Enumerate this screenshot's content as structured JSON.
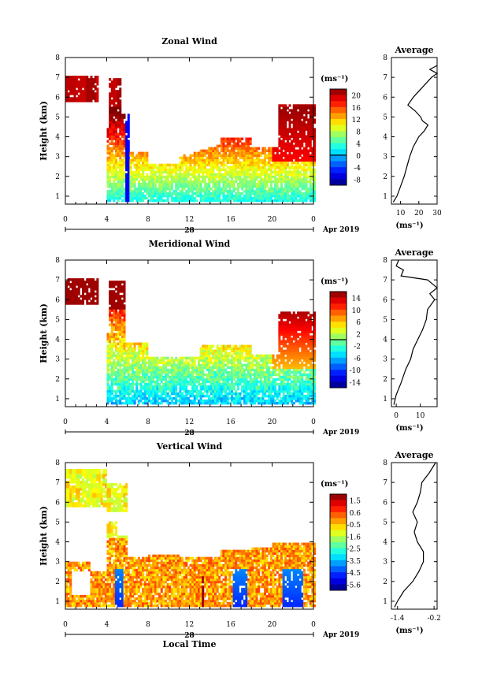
{
  "chart_data": [
    {
      "type": "heatmap",
      "title": "Zonal Wind",
      "ylabel": "Height (km)",
      "xlabel": "",
      "x_ticks": [
        "0",
        "4",
        "8",
        "12",
        "16",
        "20",
        "0"
      ],
      "y_ticks": [
        "1",
        "2",
        "3",
        "4",
        "5",
        "6",
        "7",
        "8"
      ],
      "date_label": "28",
      "month_label": "Apr 2019",
      "xlim": [
        0,
        24
      ],
      "ylim": [
        0.6,
        8.0
      ],
      "colorbar": {
        "unit": "(ms⁻¹)",
        "ticks": [
          "20",
          "16",
          "12",
          "8",
          "4",
          "0",
          "-4",
          "-8"
        ],
        "range": [
          -10,
          22
        ],
        "zero_line": 0
      },
      "average_profile": {
        "title": "Average",
        "xlabel": "(ms⁻¹)",
        "x_ticks": [
          "10",
          "20",
          "30"
        ],
        "xlim": [
          5,
          30
        ],
        "height": [
          0.7,
          1.0,
          1.5,
          2.0,
          2.5,
          3.0,
          3.5,
          4.0,
          4.3,
          4.6,
          4.8,
          5.0,
          5.3,
          5.6,
          6.0,
          6.5,
          7.0,
          7.2,
          7.4,
          7.6
        ],
        "value": [
          6,
          8,
          10,
          12,
          13.5,
          15,
          17,
          20,
          23,
          25,
          22,
          21,
          18,
          14,
          17,
          22,
          27,
          30,
          26,
          30
        ]
      }
    },
    {
      "type": "heatmap",
      "title": "Meridional Wind",
      "ylabel": "Height (km)",
      "xlabel": "",
      "x_ticks": [
        "0",
        "4",
        "8",
        "12",
        "16",
        "20",
        "0"
      ],
      "y_ticks": [
        "1",
        "2",
        "3",
        "4",
        "5",
        "6",
        "7",
        "8"
      ],
      "date_label": "28",
      "month_label": "Apr 2019",
      "xlim": [
        0,
        24
      ],
      "ylim": [
        0.6,
        8.0
      ],
      "colorbar": {
        "unit": "(ms⁻¹)",
        "ticks": [
          "14",
          "10",
          "6",
          "2",
          "-2",
          "-6",
          "-10",
          "-14"
        ],
        "range": [
          -16,
          16
        ],
        "zero_line": 0
      },
      "average_profile": {
        "title": "Average",
        "xlabel": "(ms⁻¹)",
        "x_ticks": [
          "0",
          "10"
        ],
        "xlim": [
          -2,
          17
        ],
        "height": [
          0.7,
          1.2,
          1.8,
          2.5,
          3.0,
          3.5,
          4.0,
          4.5,
          5.0,
          5.5,
          6.0,
          6.3,
          6.6,
          7.0,
          7.2,
          7.5,
          7.7,
          8.0
        ],
        "value": [
          -1,
          0,
          2,
          4,
          6,
          7,
          9,
          11,
          12.5,
          13,
          16,
          14,
          17,
          13,
          2,
          3,
          0,
          1
        ]
      }
    },
    {
      "type": "heatmap",
      "title": "Vertical Wind",
      "ylabel": "Height (km)",
      "xlabel": "Local Time",
      "x_ticks": [
        "0",
        "4",
        "8",
        "12",
        "16",
        "20",
        "0"
      ],
      "y_ticks": [
        "1",
        "2",
        "3",
        "4",
        "5",
        "6",
        "7",
        "8"
      ],
      "date_label": "28",
      "month_label": "Apr 2019",
      "xlim": [
        0,
        24
      ],
      "ylim": [
        0.6,
        8.0
      ],
      "colorbar": {
        "unit": "(ms⁻¹)",
        "ticks": [
          "1.5",
          "0.6",
          "-0.5",
          "-1.6",
          "-2.5",
          "-3.5",
          "-4.5",
          "-5.6"
        ],
        "range": [
          -6.0,
          2.0
        ]
      },
      "average_profile": {
        "title": "Average",
        "xlabel": "(ms⁻¹)",
        "x_ticks": [
          "-1.4",
          "-0.2"
        ],
        "xlim": [
          -1.6,
          -0.1
        ],
        "height": [
          0.7,
          1.0,
          1.5,
          2.0,
          2.5,
          3.0,
          3.5,
          4.0,
          4.5,
          5.0,
          5.5,
          6.0,
          6.5,
          7.0,
          7.5,
          8.0
        ],
        "value": [
          -1.5,
          -1.4,
          -1.2,
          -0.9,
          -0.7,
          -0.55,
          -0.55,
          -0.75,
          -0.85,
          -0.75,
          -0.9,
          -0.75,
          -0.65,
          -0.6,
          -0.35,
          -0.15
        ]
      }
    }
  ]
}
